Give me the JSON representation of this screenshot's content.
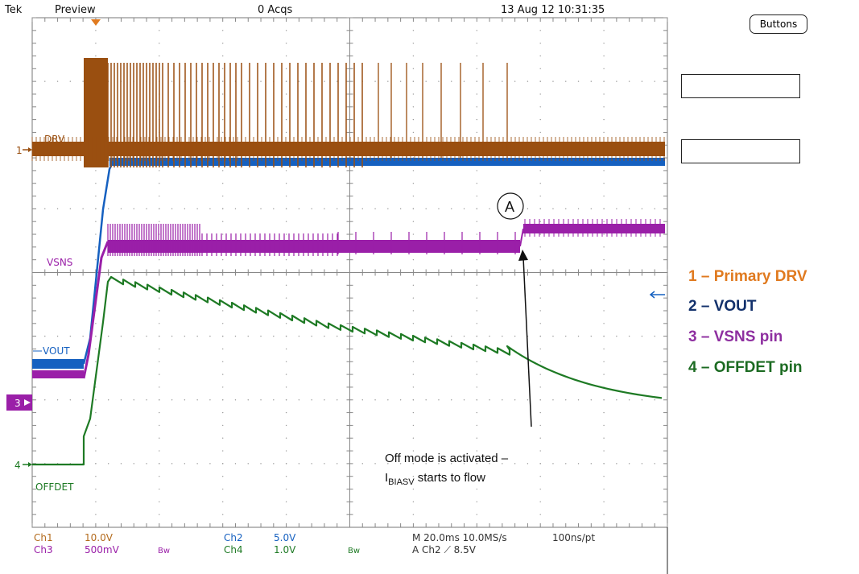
{
  "header": {
    "brand": "Tek",
    "mode": "Preview",
    "acqs": "0 Acqs",
    "datetime": "13 Aug 12 10:31:35"
  },
  "side": {
    "buttons_label": "Buttons"
  },
  "channel_tags": {
    "drv": "DRV",
    "vsns": "VSNS",
    "vout": "VOUT",
    "offdet": "OFFDET",
    "marker_1": "1",
    "marker_3": "3",
    "marker_4": "4"
  },
  "annotation": {
    "circle_label": "A",
    "line1": "Off mode is activated –",
    "line2_prefix": "I",
    "line2_sub": "BIASV",
    "line2_suffix": " starts to flow"
  },
  "bottom_readout": {
    "ch1_label": "Ch1",
    "ch1_value": "10.0V",
    "ch2_label": "Ch2",
    "ch2_value": "5.0V",
    "ch3_label": "Ch3",
    "ch3_value": "500mV",
    "ch4_label": "Ch4",
    "ch4_value": "1.0V",
    "bw1": "Bw",
    "bw2": "Bw",
    "timebase": "M 20.0ms 10.0MS/s",
    "record": "100ns/pt",
    "trigger": "A Ch2 ⟋ 8.5V"
  },
  "legend": [
    {
      "text": "1 – Primary DRV",
      "color": "#e07a1f"
    },
    {
      "text": "2 – VOUT",
      "color": "#12306b"
    },
    {
      "text": "3 – VSNS pin",
      "color": "#8e2fa0"
    },
    {
      "text": "4 – OFFDET pin",
      "color": "#1c6b22"
    }
  ],
  "colors": {
    "drv": "#9a4f10",
    "vout": "#1560c0",
    "vsns": "#9a1fa8",
    "offdet": "#1e7a24",
    "grid": "#888888"
  }
}
